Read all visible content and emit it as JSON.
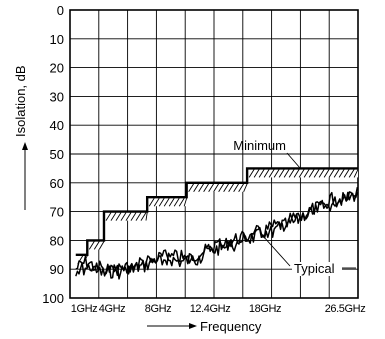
{
  "chart_data": {
    "type": "line",
    "xlabel": "Frequency",
    "ylabel": "Isolation, dB",
    "x_categories": [
      "1GHz",
      "4GHz",
      "8GHz",
      "12.4GHz",
      "18GHz",
      "26.5GHz"
    ],
    "ylim": [
      0,
      100
    ],
    "y_inverted": true,
    "y_ticks": [
      0,
      10,
      20,
      30,
      40,
      50,
      60,
      70,
      80,
      90,
      100
    ],
    "grid": true,
    "series": [
      {
        "name": "Minimum",
        "style": "step-with-hatch",
        "points": [
          [
            "1GHz",
            85
          ],
          [
            "2GHz",
            85
          ],
          [
            "2GHz",
            80
          ],
          [
            "4GHz",
            80
          ],
          [
            "4GHz",
            70
          ],
          [
            "8GHz",
            70
          ],
          [
            "8GHz",
            65
          ],
          [
            "12.4GHz",
            65
          ],
          [
            "12.4GHz",
            60
          ],
          [
            "18GHz",
            60
          ],
          [
            "18GHz",
            55
          ],
          [
            "26.5GHz",
            55
          ]
        ]
      },
      {
        "name": "Typical",
        "style": "noisy-trace",
        "points": [
          [
            "1GHz",
            90
          ],
          [
            "2GHz",
            88
          ],
          [
            "4GHz",
            91
          ],
          [
            "6GHz",
            90
          ],
          [
            "8GHz",
            88
          ],
          [
            "10GHz",
            86
          ],
          [
            "12.4GHz",
            87
          ],
          [
            "15GHz",
            83
          ],
          [
            "18GHz",
            79
          ],
          [
            "22GHz",
            74
          ],
          [
            "25GHz",
            68
          ],
          [
            "26.5GHz",
            63
          ]
        ]
      }
    ],
    "annotations": [
      "Minimum",
      "Typical"
    ],
    "colors": {
      "line": "#000000",
      "grid": "#000000",
      "background": "#ffffff"
    }
  }
}
